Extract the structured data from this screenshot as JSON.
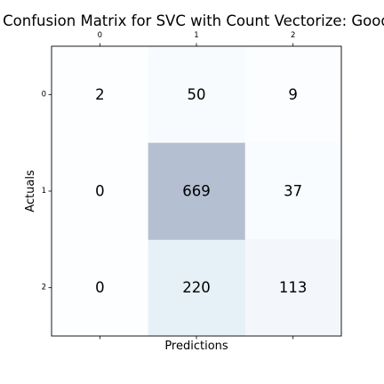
{
  "chart_data": {
    "type": "heatmap",
    "title": "Confusion Matrix for SVC with Count Vectorize: Good",
    "xlabel": "Predictions",
    "ylabel": "Actuals",
    "x_tick_labels": [
      "0",
      "1",
      "2"
    ],
    "y_tick_labels": [
      "0",
      "1",
      "2"
    ],
    "x_tick_position": "top",
    "values": [
      [
        2,
        50,
        9
      ],
      [
        0,
        669,
        37
      ],
      [
        0,
        220,
        113
      ]
    ],
    "colormap": "Blues",
    "cell_alpha": 0.3,
    "grid": false,
    "cell_text_color": "#000000",
    "text_color": "#000000",
    "background_color": "#ffffff"
  }
}
